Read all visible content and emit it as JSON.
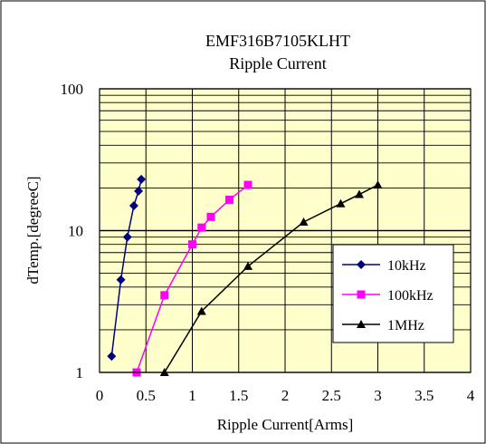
{
  "chart_data": {
    "type": "line",
    "title": "EMF316B7105KLHT",
    "subtitle": "Ripple Current",
    "xlabel": "Ripple Current[Arms]",
    "ylabel": "dTemp.[degreeC]",
    "xlim": [
      0,
      4
    ],
    "ylim": [
      1,
      100
    ],
    "yscale": "log",
    "x_ticks": [
      "0",
      "0.5",
      "1",
      "1.5",
      "2",
      "2.5",
      "3",
      "3.5",
      "4"
    ],
    "y_ticks": [
      "1",
      "10",
      "100"
    ],
    "grid": true,
    "legend_position": "bottom-right",
    "background_color": "#FFFFCC",
    "series": [
      {
        "name": "10kHz",
        "color": "#000080",
        "marker": "diamond",
        "x": [
          0.13,
          0.23,
          0.3,
          0.37,
          0.42,
          0.45
        ],
        "y": [
          1.3,
          4.5,
          9,
          15,
          19,
          23
        ]
      },
      {
        "name": "100kHz",
        "color": "#FF00FF",
        "marker": "square",
        "x": [
          0.4,
          0.7,
          1.0,
          1.1,
          1.2,
          1.4,
          1.6
        ],
        "y": [
          1.0,
          3.5,
          8,
          10.5,
          12.5,
          16.5,
          21
        ]
      },
      {
        "name": "1MHz",
        "color": "#000000",
        "marker": "triangle",
        "x": [
          0.7,
          1.1,
          1.6,
          2.2,
          2.6,
          2.8,
          3.0
        ],
        "y": [
          1.0,
          2.7,
          5.6,
          11.5,
          15.5,
          18,
          21
        ]
      }
    ]
  }
}
